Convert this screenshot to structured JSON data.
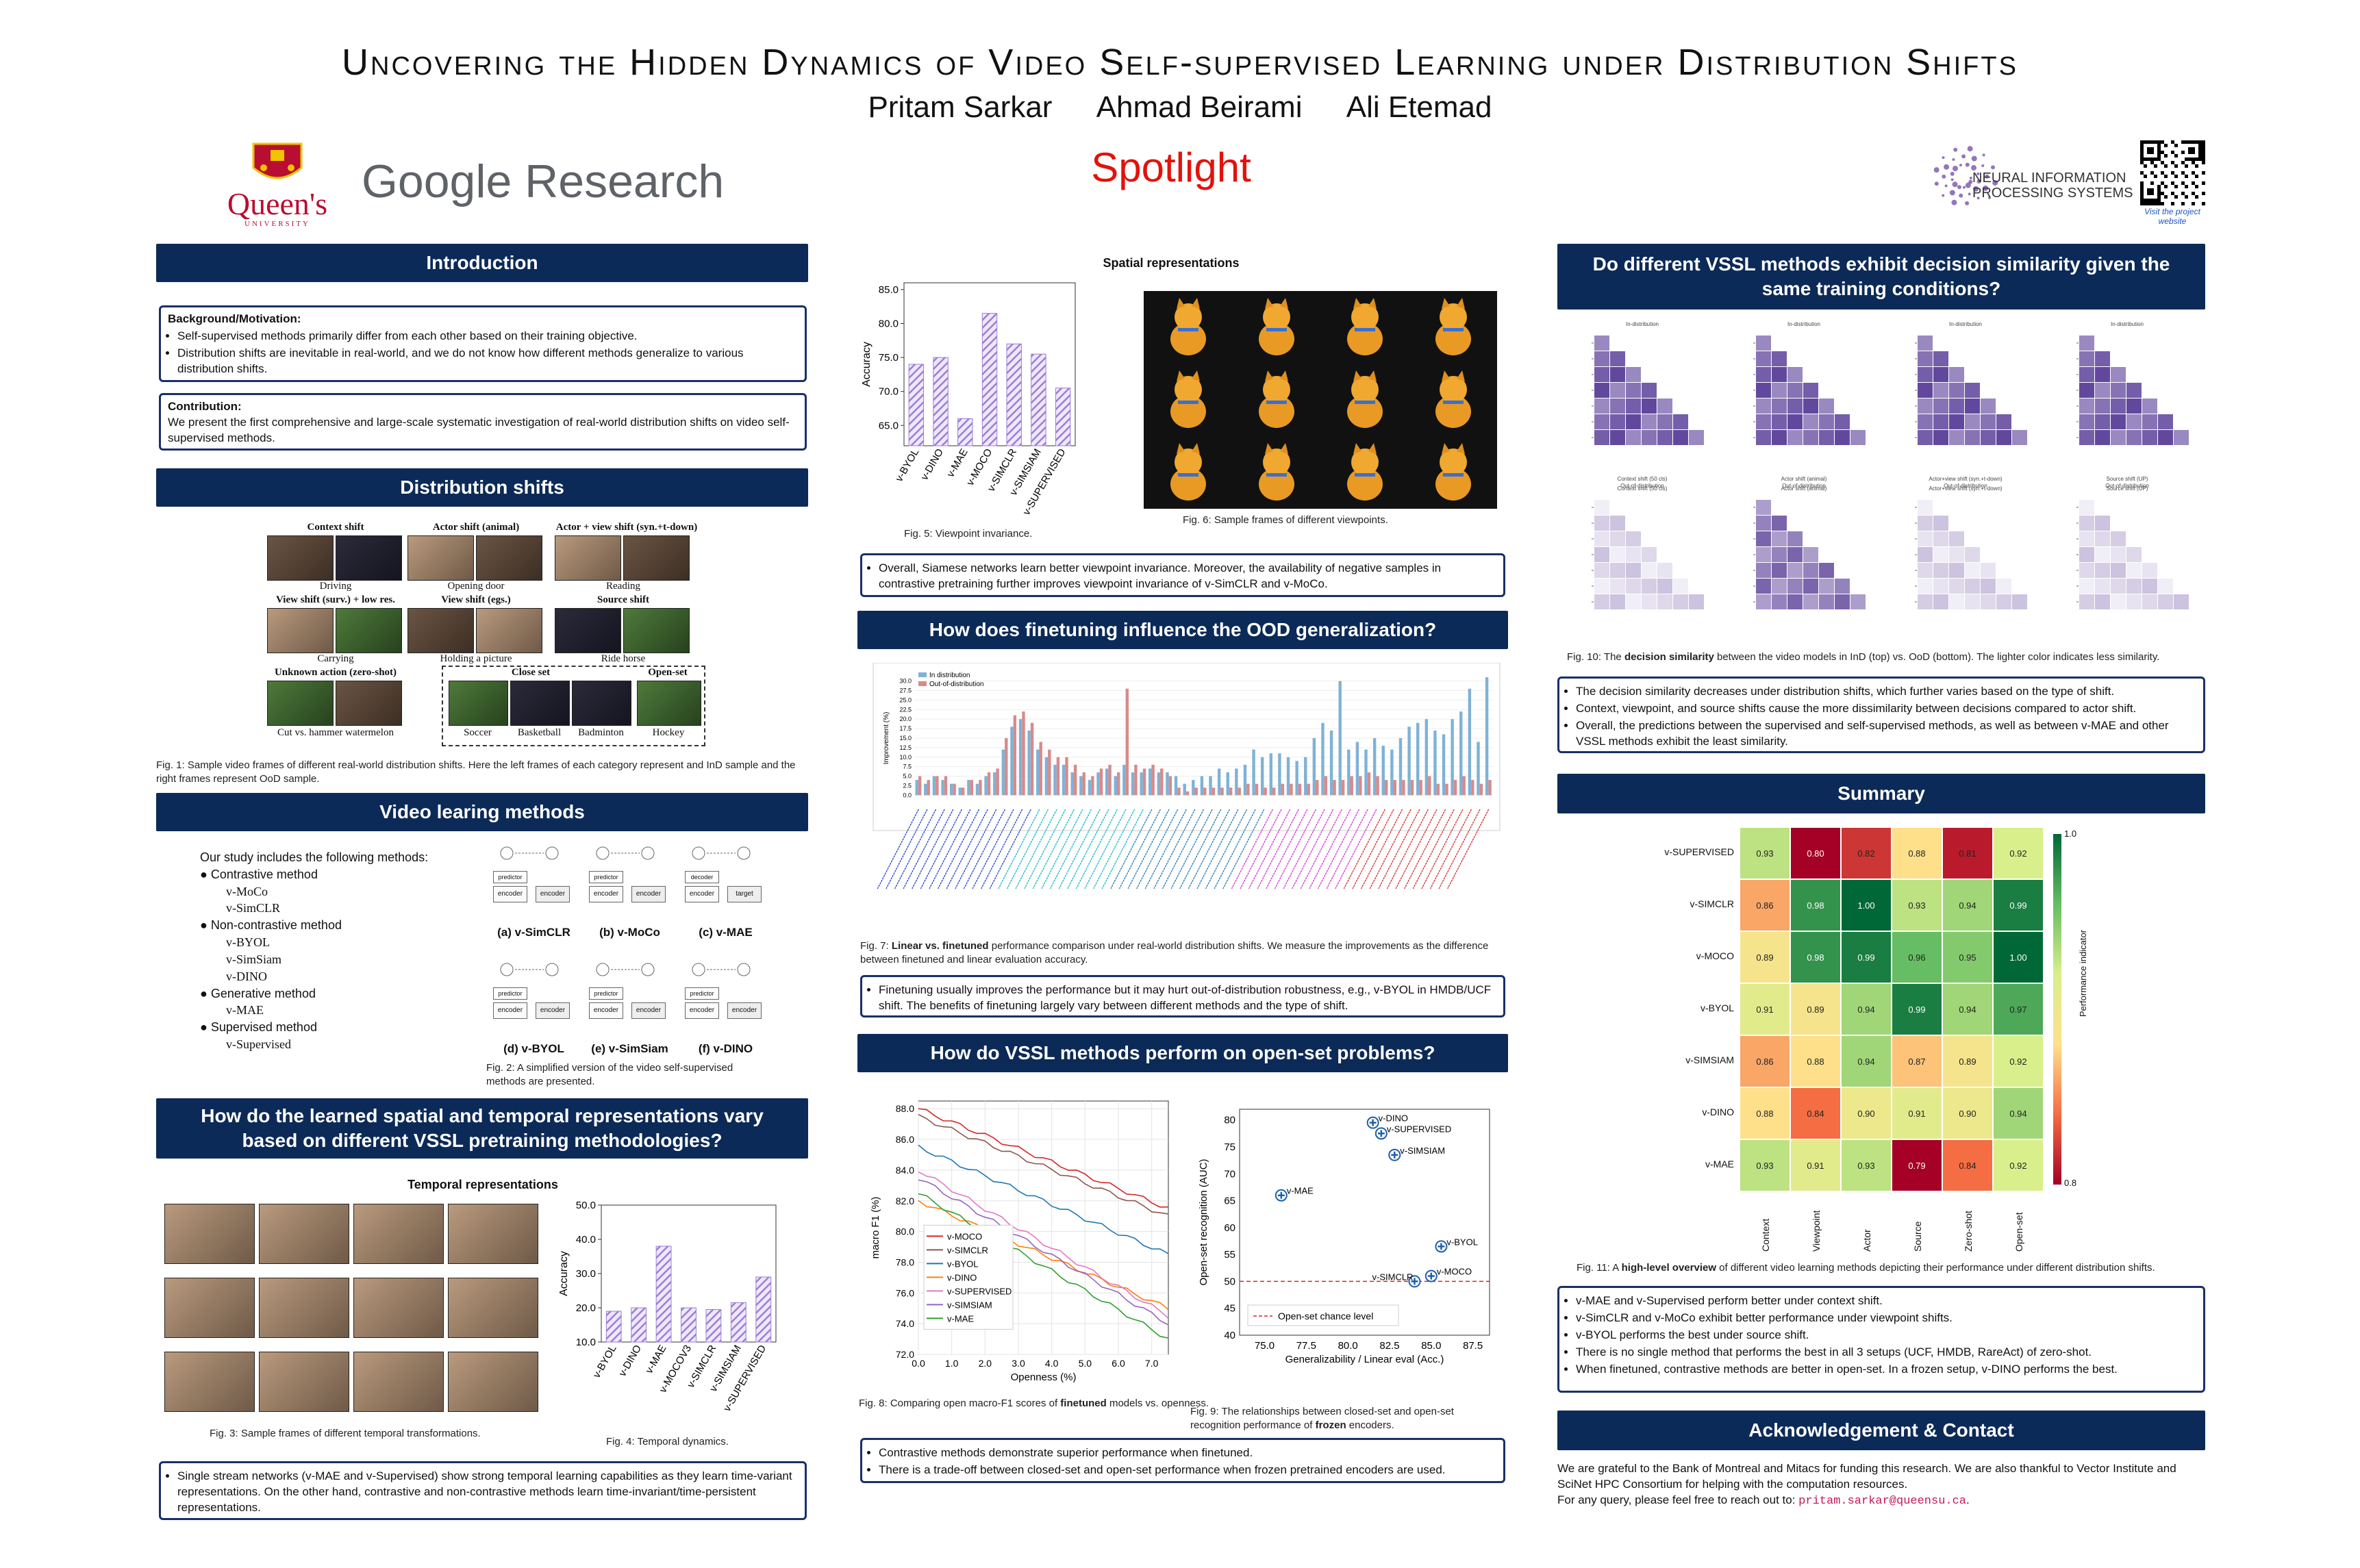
{
  "header": {
    "title": "Uncovering the Hidden Dynamics of Video Self-supervised Learning under Distribution Shifts",
    "authors": [
      "Pritam Sarkar",
      "Ahmad Beirami",
      "Ali Etemad"
    ],
    "spotlight": "Spotlight",
    "logo_queens": "Queen's",
    "logo_queens_sub": "UNIVERSITY",
    "logo_google": "Google Research",
    "logo_neurips_1": "NEURAL INFORMATION",
    "logo_neurips_2": "PROCESSING SYSTEMS",
    "qr_caption": "Visit the project website"
  },
  "intro": {
    "heading": "Introduction",
    "bg_title": "Background/Motivation:",
    "bg_items": [
      "Self-supervised methods primarily differ from each other based on their training objective.",
      "Distribution shifts are inevitable in real-world, and we do not know how different methods generalize to various distribution shifts."
    ],
    "contrib_title": "Contribution:",
    "contrib_text": "We present the first comprehensive and large-scale systematic investigation of real-world distribution shifts on video self-supervised methods."
  },
  "dist": {
    "heading": "Distribution shifts",
    "groups": {
      "context": "Context shift",
      "actor": "Actor shift (animal)",
      "actorview": "Actor + view shift (syn.+t-down)",
      "view": "View shift (surv.) + low res.",
      "viewego": "View shift (egs.)",
      "source": "Source shift",
      "unknown": "Unknown action (zero-shot)",
      "closeset": "Close set",
      "openset": "Open-set"
    },
    "labels": {
      "driving": "Driving",
      "opening": "Opening door",
      "reading": "Reading",
      "carrying": "Carrying",
      "holding": "Holding a picture",
      "ride": "Ride horse",
      "cut": "Cut vs. hammer watermelon",
      "soccer": "Soccer",
      "basketball": "Basketball",
      "badminton": "Badminton",
      "hockey": "Hockey"
    },
    "caption": "Fig. 1: Sample video frames of different real-world distribution shifts. Here the left frames of each category represent and InD sample and the right frames represent OoD sample."
  },
  "methods": {
    "heading": "Video learing methods",
    "intro": "Our study includes the following methods:",
    "groups": [
      {
        "name": "Contrastive method",
        "items": [
          "v-MoCo",
          "v-SimCLR"
        ]
      },
      {
        "name": "Non-contrastive method",
        "items": [
          "v-BYOL",
          "v-SimSiam",
          "v-DINO"
        ]
      },
      {
        "name": "Generative method",
        "items": [
          "v-MAE"
        ]
      },
      {
        "name": "Supervised method",
        "items": [
          "v-Supervised"
        ]
      }
    ],
    "diagram_labels": [
      "(a) v-SimCLR",
      "(b) v-MoCo",
      "(c) v-MAE",
      "(d) v-BYOL",
      "(e) v-SimSiam",
      "(f) v-DINO"
    ],
    "encoder": "encoder",
    "predictor": "predictor",
    "decoder": "decoder",
    "target": "target",
    "caption": "Fig. 2: A simplified version of the video self-supervised methods are presented."
  },
  "spatiotemporal": {
    "heading": "How do the learned spatial and temporal representations vary based on different VSSL pretraining methodologies?",
    "temporal_title": "Temporal representations",
    "fig3_caption": "Fig. 3: Sample frames of different temporal transformations.",
    "fig4_caption": "Fig. 4: Temporal dynamics.",
    "note": "Single stream networks (v-MAE and v-Supervised) show strong temporal learning capabilities as they learn time-variant representations. On the other hand, contrastive and non-contrastive methods learn time-invariant/time-persistent representations."
  },
  "spatial": {
    "title": "Spatial representations",
    "fig5_caption": "Fig. 5: Viewpoint invariance.",
    "fig6_caption": "Fig. 6: Sample frames of different viewpoints.",
    "note": "Overall, Siamese networks learn better viewpoint invariance. Moreover, the availability of negative samples in contrastive pretraining further improves viewpoint invariance of v-SimCLR and v-MoCo."
  },
  "finetune": {
    "heading": "How does finetuning influence the OOD generalization?",
    "legend_ind": "In distribution",
    "legend_ood": "Out-of-distribution",
    "ylabel": "Improvement (%)",
    "caption_bold": "Linear vs. finetuned",
    "caption_pre": "Fig. 7: ",
    "caption_rest": " performance comparison under real-world distribution shifts. We measure the improvements as the difference between finetuned and linear evaluation accuracy.",
    "note": "Finetuning usually improves the performance but it may hurt out-of-distribution robustness, e.g., v-BYOL in HMDB/UCF shift. The benefits of finetuning largely vary between different methods and the type of shift."
  },
  "openset": {
    "heading": "How do VSSL methods perform on open-set problems?",
    "fig8_caption_pre": "Fig. 8: Comparing open macro-F1 scores of ",
    "fig8_caption_bold": "finetuned",
    "fig8_caption_post": " models vs. openness.",
    "fig9_caption_pre": "Fig. 9: The relationships between closed-set and open-set recognition performance of ",
    "fig9_caption_bold": "frozen",
    "fig9_caption_post": " encoders.",
    "notes": [
      "Contrastive methods demonstrate superior performance when finetuned.",
      "There is a trade-off between closed-set and open-set performance when frozen pretrained encoders are used."
    ]
  },
  "decision": {
    "heading": "Do different VSSL methods exhibit decision similarity given the same training conditions?",
    "top_titles": [
      "In-distribution",
      "In-distribution",
      "In-distribution",
      "In-distribution"
    ],
    "bot_titles": [
      "Out-of-distribution",
      "Out-of-distribution",
      "Out-of-distribution",
      "Out-of-distribution"
    ],
    "sub_titles": [
      "Context shift (50 cls)",
      "Actor shift (animal)",
      "Actor+view shift (syn.+t-down)",
      "Source shift (UP)"
    ],
    "caption_pre": "Fig. 10: The ",
    "caption_bold": "decision similarity",
    "caption_post": " between the video models in InD (top) vs. OoD (bottom). The lighter color indicates less similarity.",
    "notes": [
      "The decision similarity decreases under distribution shifts, which further varies based on the type of shift.",
      "Context, viewpoint, and source shifts cause the more dissimilarity between decisions compared to actor shift.",
      "Overall, the predictions between the supervised and self-supervised methods, as well as between v-MAE and other VSSL methods exhibit the least similarity."
    ]
  },
  "summary": {
    "heading": "Summary",
    "colorbar_label": "Performance indicator",
    "colorbar_max": "1.0",
    "colorbar_min": "0.8",
    "caption_pre": "Fig. 11: A ",
    "caption_bold": "high-level overview",
    "caption_post": " of different video learning methods depicting their performance under different distribution shifts.",
    "notes": [
      "v-MAE and v-Supervised perform better under context shift.",
      "v-SimCLR and v-MoCo exhibit better performance under viewpoint shifts.",
      "v-BYOL performs the best under source shift.",
      "There is no single method that performs the best in all 3 setups (UCF, HMDB, RareAct) of zero-shot.",
      "When finetuned, contrastive methods are better in open-set. In a frozen setup, v-DINO performs the best."
    ]
  },
  "ack": {
    "heading": "Acknowledgement & Contact",
    "text": "We are grateful to the Bank of Montreal and Mitacs for funding this research. We are also thankful to Vector Institute and SciNet HPC Consortium for helping with the computation resources.",
    "contact_pre": "For any query, please feel free to reach out to: ",
    "email": "pritam.sarkar@queensu.ca",
    "contact_post": "."
  },
  "chart_data": [
    {
      "id": "fig4",
      "type": "bar",
      "categories": [
        "v-BYOL",
        "v-DINO",
        "v-MAE",
        "v-MOCOV3",
        "v-SIMCLR",
        "v-SIMSIAM",
        "v-SUPERVISED"
      ],
      "values": [
        19.0,
        20.0,
        38.0,
        20.0,
        19.5,
        21.5,
        29.0
      ],
      "ylabel": "Accuracy",
      "ylim": [
        10,
        50
      ],
      "yticks": [
        10.0,
        20.0,
        30.0,
        40.0,
        50.0
      ],
      "color": "#9b7fd4"
    },
    {
      "id": "fig5",
      "type": "bar",
      "categories": [
        "v-BYOL",
        "v-DINO",
        "v-MAE",
        "v-MOCO",
        "v-SIMCLR",
        "v-SIMSIAM",
        "v-SUPERVISED"
      ],
      "values": [
        74.0,
        75.0,
        66.0,
        81.5,
        77.0,
        75.5,
        70.5
      ],
      "ylabel": "Accuracy",
      "ylim": [
        62,
        86
      ],
      "yticks": [
        65.0,
        70.0,
        75.0,
        80.0,
        85.0
      ],
      "color": "#9b7fd4"
    },
    {
      "id": "fig7",
      "type": "bar",
      "ylabel": "Improvement (%)",
      "ylim": [
        -3,
        33
      ],
      "yticks": [
        0.0,
        2.5,
        5.0,
        7.5,
        10.0,
        12.5,
        15.0,
        17.5,
        20.0,
        22.5,
        25.0,
        27.5,
        30.0
      ],
      "series": [
        {
          "name": "In distribution",
          "values": [
            4,
            3,
            5,
            4,
            3,
            2,
            4,
            3,
            5,
            6,
            12,
            18,
            20,
            17,
            12,
            10,
            8,
            8,
            6,
            5,
            4,
            6,
            7,
            5,
            8,
            6,
            6,
            7,
            6,
            6,
            5,
            3,
            4,
            5,
            5,
            7,
            6,
            7,
            8,
            12,
            10,
            11,
            11,
            10,
            9,
            10,
            15,
            19,
            17,
            30,
            12,
            14,
            12,
            15,
            13,
            12,
            15,
            18,
            19,
            20,
            17,
            16,
            20,
            22,
            28,
            14,
            31
          ]
        },
        {
          "name": "Out-of-distribution",
          "values": [
            5,
            4,
            5,
            5,
            3,
            2,
            4,
            4,
            6,
            7,
            15,
            21,
            22,
            19,
            14,
            12,
            10,
            10,
            8,
            6,
            5,
            7,
            8,
            6,
            28,
            8,
            7,
            8,
            7,
            5,
            2,
            1,
            2,
            2,
            2,
            2,
            2,
            2,
            3,
            3,
            2,
            2,
            3,
            3,
            3,
            3,
            4,
            5,
            4,
            4,
            5,
            5,
            6,
            5,
            4,
            4,
            4,
            4,
            4,
            5,
            3,
            3,
            4,
            5,
            4,
            3,
            4
          ]
        }
      ]
    },
    {
      "id": "fig8",
      "type": "line",
      "xlabel": "Openness (%)",
      "ylabel": "macro F1 (%)",
      "xlim": [
        0.0,
        7.5
      ],
      "ylim": [
        72.0,
        88.5
      ],
      "xticks": [
        0.0,
        1.0,
        2.0,
        3.0,
        4.0,
        5.0,
        6.0,
        7.0
      ],
      "yticks": [
        72.0,
        74.0,
        76.0,
        78.0,
        80.0,
        82.0,
        84.0,
        86.0,
        88.0
      ],
      "x": [
        0.0,
        7.5
      ],
      "series": [
        {
          "name": "v-MOCO",
          "color": "#d62728",
          "values": [
            88.0,
            81.5
          ]
        },
        {
          "name": "v-SIMCLR",
          "color": "#8c564b",
          "values": [
            87.5,
            81.0
          ]
        },
        {
          "name": "v-BYOL",
          "color": "#1f77b4",
          "values": [
            85.5,
            78.5
          ]
        },
        {
          "name": "v-DINO",
          "color": "#ff7f0e",
          "values": [
            82.0,
            75.0
          ]
        },
        {
          "name": "v-SUPERVISED",
          "color": "#e377c2",
          "values": [
            84.0,
            74.5
          ]
        },
        {
          "name": "v-SIMSIAM",
          "color": "#9467bd",
          "values": [
            83.5,
            74.0
          ]
        },
        {
          "name": "v-MAE",
          "color": "#2ca02c",
          "values": [
            82.5,
            73.0
          ]
        }
      ]
    },
    {
      "id": "fig9",
      "type": "scatter",
      "xlabel": "Generalizability / Linear eval (Acc.)",
      "ylabel": "Open-set recognition (AUC)",
      "xlim": [
        73.5,
        88.5
      ],
      "ylim": [
        40,
        82
      ],
      "xticks": [
        75.0,
        77.5,
        80.0,
        82.5,
        85.0,
        87.5
      ],
      "yticks": [
        40,
        45,
        50,
        55,
        60,
        65,
        70,
        75,
        80
      ],
      "chance_label": "Open-set chance level",
      "chance_value": 50,
      "points": [
        {
          "label": "v-DINO",
          "x": 81.5,
          "y": 79.5
        },
        {
          "label": "v-SUPERVISED",
          "x": 82.0,
          "y": 77.5
        },
        {
          "label": "v-SIMSIAM",
          "x": 82.8,
          "y": 73.5
        },
        {
          "label": "v-MAE",
          "x": 76.0,
          "y": 66.0
        },
        {
          "label": "v-BYOL",
          "x": 85.6,
          "y": 56.5
        },
        {
          "label": "v-MOCO",
          "x": 85.0,
          "y": 51.0
        },
        {
          "label": "v-SIMCLR",
          "x": 84.0,
          "y": 50.0
        }
      ]
    },
    {
      "id": "fig11",
      "type": "heatmap",
      "rows": [
        "v-SUPERVISED",
        "v-SIMCLR",
        "v-MOCO",
        "v-BYOL",
        "v-SIMSIAM",
        "v-DINO",
        "v-MAE"
      ],
      "cols": [
        "Context",
        "Viewpoint",
        "Actor",
        "Source",
        "Zero-shot",
        "Open-set"
      ],
      "values": [
        [
          0.93,
          0.8,
          0.82,
          0.88,
          0.81,
          0.92
        ],
        [
          0.86,
          0.98,
          1.0,
          0.93,
          0.94,
          0.99
        ],
        [
          0.89,
          0.98,
          0.99,
          0.96,
          0.95,
          1.0
        ],
        [
          0.91,
          0.89,
          0.94,
          0.99,
          0.94,
          0.97
        ],
        [
          0.86,
          0.88,
          0.94,
          0.87,
          0.89,
          0.92
        ],
        [
          0.88,
          0.84,
          0.9,
          0.91,
          0.9,
          0.94
        ],
        [
          0.93,
          0.91,
          0.93,
          0.79,
          0.84,
          0.92
        ]
      ],
      "vmin": 0.8,
      "vmax": 1.0
    }
  ]
}
